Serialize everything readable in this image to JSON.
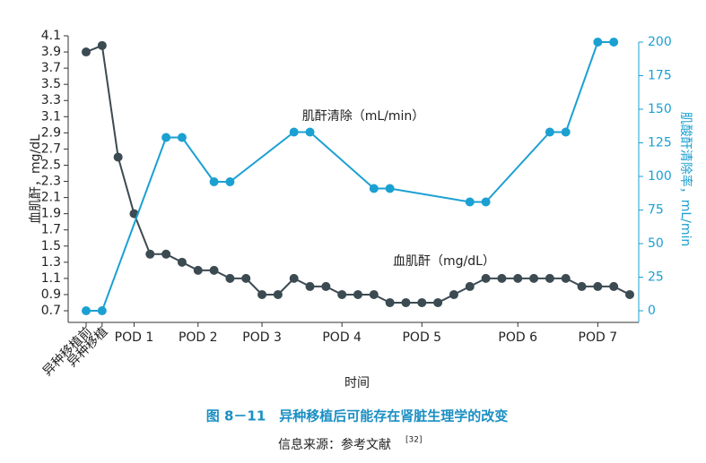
{
  "chart_data": {
    "type": "line",
    "caption": "图 8－11　异种移植后可能存在肾脏生理学的改变",
    "source": "信息来源：参考文献",
    "source_ref": "[32]",
    "x_label": "时间",
    "y_label": "血肌酐，mg/dL",
    "y2_label": "肌酸酐清除率，mL/min",
    "xlim": [
      0,
      34
    ],
    "xticks": [
      {
        "value": 0,
        "label": "异种移植前"
      },
      {
        "value": 1,
        "label": "异种移植"
      },
      {
        "value": 3,
        "label": "POD 1"
      },
      {
        "value": 7,
        "label": "POD 2"
      },
      {
        "value": 11,
        "label": "POD 3"
      },
      {
        "value": 16,
        "label": "POD 4"
      },
      {
        "value": 21,
        "label": "POD 5"
      },
      {
        "value": 27,
        "label": "POD 6"
      },
      {
        "value": 32,
        "label": "POD 7"
      }
    ],
    "ylim": [
      0.7,
      4.1
    ],
    "yticks": [
      0.7,
      0.9,
      1.1,
      1.3,
      1.5,
      1.7,
      1.9,
      2.1,
      2.3,
      2.5,
      2.7,
      2.9,
      3.1,
      3.3,
      3.5,
      3.7,
      3.9,
      4.1
    ],
    "y2lim": [
      0,
      200
    ],
    "y2ticks": [
      0,
      25,
      50,
      75,
      100,
      125,
      150,
      175,
      200
    ],
    "series": [
      {
        "name": "血肌酐（mg/dL）",
        "color": "#3c4a52",
        "axis": "y",
        "x": [
          0,
          1,
          2,
          3,
          4,
          5,
          6,
          7,
          8,
          9,
          10,
          11,
          12,
          13,
          14,
          15,
          16,
          17,
          18,
          19,
          20,
          21,
          22,
          23,
          24,
          25,
          26,
          27,
          28,
          29,
          30,
          31,
          32,
          33,
          34
        ],
        "values": [
          3.9,
          3.98,
          2.6,
          1.9,
          1.4,
          1.4,
          1.3,
          1.2,
          1.2,
          1.1,
          1.1,
          0.9,
          0.9,
          1.1,
          1.0,
          1.0,
          0.9,
          0.9,
          0.9,
          0.8,
          0.8,
          0.8,
          0.8,
          0.9,
          1.0,
          1.1,
          1.1,
          1.1,
          1.1,
          1.1,
          1.1,
          1.0,
          1.0,
          1.0,
          0.9
        ]
      },
      {
        "name": "肌酐清除（mL/min）",
        "color": "#1ba0d2",
        "axis": "y2",
        "x": [
          0,
          1,
          5,
          6,
          8,
          9,
          13,
          14,
          18,
          19,
          24,
          25,
          29,
          30,
          32,
          33
        ],
        "values": [
          0,
          0,
          129,
          129,
          96,
          96,
          133,
          133,
          91,
          91,
          81,
          81,
          133,
          133,
          200,
          200
        ]
      }
    ]
  }
}
